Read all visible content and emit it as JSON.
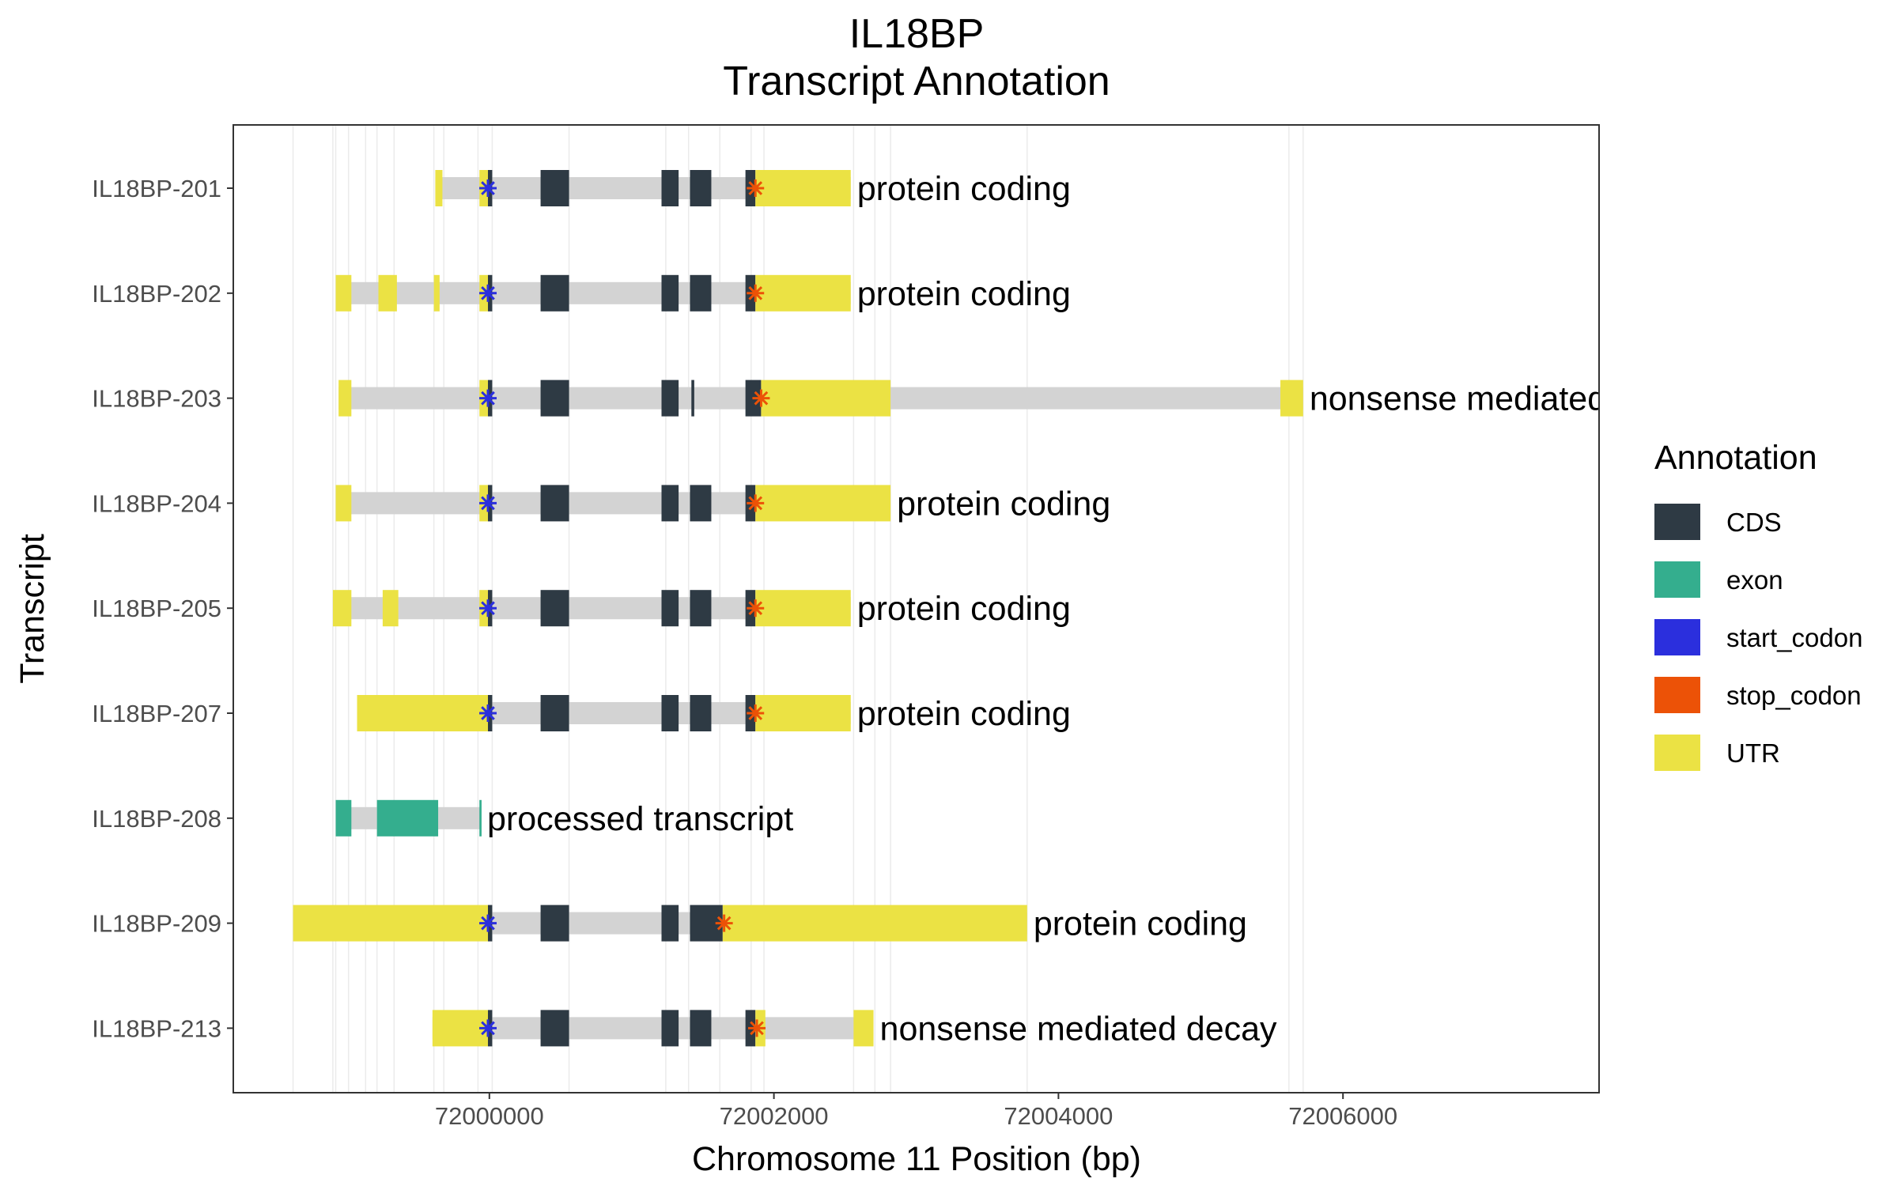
{
  "chart_data": {
    "type": "gene-structure",
    "title": "IL18BP",
    "subtitle": "Transcript Annotation",
    "xlabel": "Chromosome 11 Position (bp)",
    "ylabel": "Transcript",
    "xlim": [
      71998200,
      72007800
    ],
    "xticks": [
      72000000,
      72002000,
      72004000,
      72006000
    ],
    "xtick_labels": [
      "72000000",
      "72002000",
      "72004000",
      "72006000"
    ],
    "grid": true,
    "legend_position": "right",
    "legend": {
      "title": "Annotation",
      "items": [
        {
          "key": "CDS",
          "label": "CDS",
          "color": "#2e3a44"
        },
        {
          "key": "exon",
          "label": "exon",
          "color": "#34ae8e"
        },
        {
          "key": "start_codon",
          "label": "start_codon",
          "color": "#2b2fdd"
        },
        {
          "key": "stop_codon",
          "label": "stop_codon",
          "color": "#ec5207"
        },
        {
          "key": "UTR",
          "label": "UTR",
          "color": "#ebe244"
        }
      ]
    },
    "intron_color": "#d3d3d3",
    "gridline_positions": [
      71998620,
      71998900,
      71998920,
      71999010,
      71999130,
      71999210,
      71999330,
      71999610,
      71999680,
      71999920,
      72000020,
      72000560,
      72001240,
      72001400,
      72001620,
      72001840,
      72001930,
      72002560,
      72002710,
      72002820,
      72003780,
      72005620,
      72005720
    ],
    "transcripts": [
      {
        "name": "IL18BP-213",
        "type": "nonsense mediated decay",
        "span": [
          71999600,
          72002700
        ],
        "features": [
          {
            "type": "UTR",
            "start": 71999600,
            "end": 71999990
          },
          {
            "type": "CDS",
            "start": 71999990,
            "end": 72000020
          },
          {
            "type": "CDS",
            "start": 72000360,
            "end": 72000560
          },
          {
            "type": "CDS",
            "start": 72001210,
            "end": 72001330
          },
          {
            "type": "CDS",
            "start": 72001410,
            "end": 72001560
          },
          {
            "type": "CDS",
            "start": 72001800,
            "end": 72001870
          },
          {
            "type": "UTR",
            "start": 72001870,
            "end": 72001940
          },
          {
            "type": "UTR",
            "start": 72002560,
            "end": 72002700
          }
        ],
        "start_codon": 71999990,
        "stop_codon": 72001880
      },
      {
        "name": "IL18BP-209",
        "type": "protein coding",
        "span": [
          71998620,
          72003780
        ],
        "features": [
          {
            "type": "UTR",
            "start": 71998620,
            "end": 71999990
          },
          {
            "type": "CDS",
            "start": 71999990,
            "end": 72000020
          },
          {
            "type": "CDS",
            "start": 72000360,
            "end": 72000560
          },
          {
            "type": "CDS",
            "start": 72001210,
            "end": 72001330
          },
          {
            "type": "CDS",
            "start": 72001410,
            "end": 72001640
          },
          {
            "type": "UTR",
            "start": 72001640,
            "end": 72003780
          }
        ],
        "start_codon": 71999990,
        "stop_codon": 72001650
      },
      {
        "name": "IL18BP-208",
        "type": "processed transcript",
        "span": [
          71998920,
          71999940
        ],
        "features": [
          {
            "type": "exon",
            "start": 71998920,
            "end": 71999030
          },
          {
            "type": "exon",
            "start": 71999210,
            "end": 71999640
          },
          {
            "type": "exon",
            "start": 71999930,
            "end": 71999945
          }
        ],
        "start_codon": null,
        "stop_codon": null
      },
      {
        "name": "IL18BP-207",
        "type": "protein coding",
        "span": [
          71999070,
          72002540
        ],
        "features": [
          {
            "type": "UTR",
            "start": 71999070,
            "end": 71999990
          },
          {
            "type": "CDS",
            "start": 71999990,
            "end": 72000020
          },
          {
            "type": "CDS",
            "start": 72000360,
            "end": 72000560
          },
          {
            "type": "CDS",
            "start": 72001210,
            "end": 72001330
          },
          {
            "type": "CDS",
            "start": 72001410,
            "end": 72001560
          },
          {
            "type": "CDS",
            "start": 72001800,
            "end": 72001870
          },
          {
            "type": "UTR",
            "start": 72001870,
            "end": 72002540
          }
        ],
        "start_codon": 71999990,
        "stop_codon": 72001870
      },
      {
        "name": "IL18BP-205",
        "type": "protein coding",
        "span": [
          71998900,
          72002540
        ],
        "features": [
          {
            "type": "UTR",
            "start": 71998900,
            "end": 71999030
          },
          {
            "type": "UTR",
            "start": 71999250,
            "end": 71999360
          },
          {
            "type": "UTR",
            "start": 71999930,
            "end": 71999990
          },
          {
            "type": "CDS",
            "start": 71999990,
            "end": 72000020
          },
          {
            "type": "CDS",
            "start": 72000360,
            "end": 72000560
          },
          {
            "type": "CDS",
            "start": 72001210,
            "end": 72001330
          },
          {
            "type": "CDS",
            "start": 72001410,
            "end": 72001560
          },
          {
            "type": "CDS",
            "start": 72001800,
            "end": 72001870
          },
          {
            "type": "UTR",
            "start": 72001870,
            "end": 72002540
          }
        ],
        "start_codon": 71999990,
        "stop_codon": 72001870
      },
      {
        "name": "IL18BP-204",
        "type": "protein coding",
        "span": [
          71998920,
          72002820
        ],
        "features": [
          {
            "type": "UTR",
            "start": 71998920,
            "end": 71999030
          },
          {
            "type": "UTR",
            "start": 71999930,
            "end": 71999990
          },
          {
            "type": "CDS",
            "start": 71999990,
            "end": 72000020
          },
          {
            "type": "CDS",
            "start": 72000360,
            "end": 72000560
          },
          {
            "type": "CDS",
            "start": 72001210,
            "end": 72001330
          },
          {
            "type": "CDS",
            "start": 72001410,
            "end": 72001560
          },
          {
            "type": "CDS",
            "start": 72001800,
            "end": 72001870
          },
          {
            "type": "UTR",
            "start": 72001870,
            "end": 72002820
          }
        ],
        "start_codon": 71999990,
        "stop_codon": 72001870
      },
      {
        "name": "IL18BP-203",
        "type": "nonsense mediated decay",
        "span": [
          71998940,
          72005720
        ],
        "features": [
          {
            "type": "UTR",
            "start": 71998940,
            "end": 71999030
          },
          {
            "type": "UTR",
            "start": 71999930,
            "end": 71999990
          },
          {
            "type": "CDS",
            "start": 71999990,
            "end": 72000020
          },
          {
            "type": "CDS",
            "start": 72000360,
            "end": 72000560
          },
          {
            "type": "CDS",
            "start": 72001210,
            "end": 72001330
          },
          {
            "type": "CDS",
            "start": 72001420,
            "end": 72001440
          },
          {
            "type": "CDS",
            "start": 72001800,
            "end": 72001910
          },
          {
            "type": "UTR",
            "start": 72001910,
            "end": 72002820
          },
          {
            "type": "UTR",
            "start": 72005560,
            "end": 72005720
          }
        ],
        "start_codon": 71999990,
        "stop_codon": 72001910
      },
      {
        "name": "IL18BP-202",
        "type": "protein coding",
        "span": [
          71998920,
          72002540
        ],
        "features": [
          {
            "type": "UTR",
            "start": 71998920,
            "end": 71999030
          },
          {
            "type": "UTR",
            "start": 71999220,
            "end": 71999350
          },
          {
            "type": "UTR",
            "start": 71999610,
            "end": 71999650
          },
          {
            "type": "UTR",
            "start": 71999930,
            "end": 71999990
          },
          {
            "type": "CDS",
            "start": 71999990,
            "end": 72000020
          },
          {
            "type": "CDS",
            "start": 72000360,
            "end": 72000560
          },
          {
            "type": "CDS",
            "start": 72001210,
            "end": 72001330
          },
          {
            "type": "CDS",
            "start": 72001410,
            "end": 72001560
          },
          {
            "type": "CDS",
            "start": 72001800,
            "end": 72001870
          },
          {
            "type": "UTR",
            "start": 72001870,
            "end": 72002540
          }
        ],
        "start_codon": 71999990,
        "stop_codon": 72001870
      },
      {
        "name": "IL18BP-201",
        "type": "protein coding",
        "span": [
          71999620,
          72002540
        ],
        "features": [
          {
            "type": "UTR",
            "start": 71999620,
            "end": 71999670
          },
          {
            "type": "UTR",
            "start": 71999930,
            "end": 71999990
          },
          {
            "type": "CDS",
            "start": 71999990,
            "end": 72000020
          },
          {
            "type": "CDS",
            "start": 72000360,
            "end": 72000560
          },
          {
            "type": "CDS",
            "start": 72001210,
            "end": 72001330
          },
          {
            "type": "CDS",
            "start": 72001410,
            "end": 72001560
          },
          {
            "type": "CDS",
            "start": 72001800,
            "end": 72001870
          },
          {
            "type": "UTR",
            "start": 72001870,
            "end": 72002540
          }
        ],
        "start_codon": 71999990,
        "stop_codon": 72001870
      }
    ]
  }
}
